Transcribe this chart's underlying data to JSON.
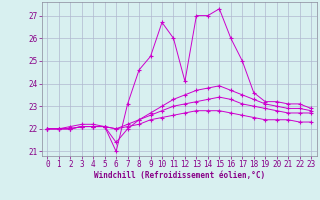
{
  "xlabel": "Windchill (Refroidissement éolien,°C)",
  "x": [
    0,
    1,
    2,
    3,
    4,
    5,
    6,
    7,
    8,
    9,
    10,
    11,
    12,
    13,
    14,
    15,
    16,
    17,
    18,
    19,
    20,
    21,
    22,
    23
  ],
  "series": [
    [
      22.0,
      22.0,
      22.1,
      22.2,
      22.2,
      22.1,
      21.0,
      23.1,
      24.6,
      25.2,
      26.7,
      26.0,
      24.1,
      27.0,
      27.0,
      27.3,
      26.0,
      25.0,
      23.6,
      23.2,
      23.2,
      23.1,
      23.1,
      22.9
    ],
    [
      22.0,
      22.0,
      22.0,
      22.1,
      22.1,
      22.1,
      21.4,
      22.0,
      22.4,
      22.7,
      23.0,
      23.3,
      23.5,
      23.7,
      23.8,
      23.9,
      23.7,
      23.5,
      23.3,
      23.1,
      23.0,
      22.9,
      22.9,
      22.8
    ],
    [
      22.0,
      22.0,
      22.0,
      22.1,
      22.1,
      22.1,
      22.0,
      22.2,
      22.4,
      22.6,
      22.8,
      23.0,
      23.1,
      23.2,
      23.3,
      23.4,
      23.3,
      23.1,
      23.0,
      22.9,
      22.8,
      22.7,
      22.7,
      22.7
    ],
    [
      22.0,
      22.0,
      22.0,
      22.1,
      22.1,
      22.1,
      22.0,
      22.1,
      22.2,
      22.4,
      22.5,
      22.6,
      22.7,
      22.8,
      22.8,
      22.8,
      22.7,
      22.6,
      22.5,
      22.4,
      22.4,
      22.4,
      22.3,
      22.3
    ]
  ],
  "line_color": "#cc00cc",
  "bg_color": "#d8f0f0",
  "grid_color": "#b0b8d0",
  "ylim": [
    20.8,
    27.6
  ],
  "yticks": [
    21,
    22,
    23,
    24,
    25,
    26,
    27
  ],
  "xlim": [
    -0.5,
    23.5
  ],
  "xticks": [
    0,
    1,
    2,
    3,
    4,
    5,
    6,
    7,
    8,
    9,
    10,
    11,
    12,
    13,
    14,
    15,
    16,
    17,
    18,
    19,
    20,
    21,
    22,
    23
  ],
  "tick_fontsize": 5.5,
  "xlabel_fontsize": 5.5,
  "label_color": "#880088"
}
